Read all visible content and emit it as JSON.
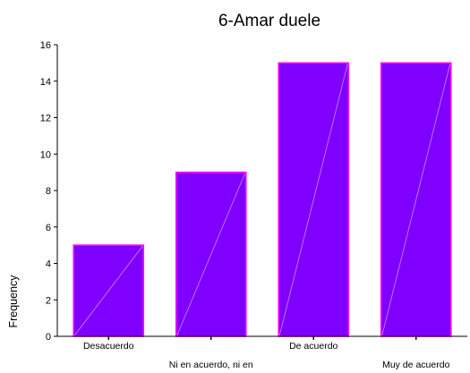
{
  "chart_data": {
    "type": "bar",
    "title": "6-Amar duele",
    "ylabel": "Frequency",
    "xlabel": "",
    "categories": [
      "Desacuerdo",
      "Ni en acuerdo, ni en",
      "De acuerdo",
      "Muy de acuerdo"
    ],
    "values": [
      5,
      9,
      15,
      15
    ],
    "ylim": [
      0,
      16
    ],
    "yticks": [
      0,
      2,
      4,
      6,
      8,
      10,
      12,
      14,
      16
    ],
    "grid": false,
    "legend": "none",
    "colors": {
      "bar_fill": "#8000ff",
      "bar_stroke": "#ff00ff",
      "axis": "#000000"
    }
  }
}
